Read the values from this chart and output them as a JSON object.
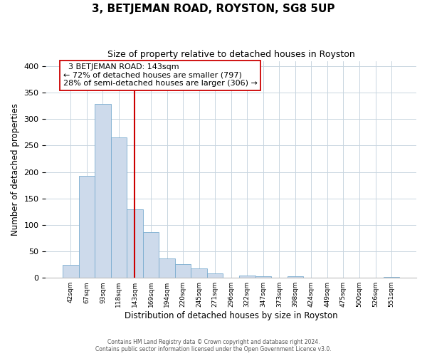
{
  "title": "3, BETJEMAN ROAD, ROYSTON, SG8 5UP",
  "subtitle": "Size of property relative to detached houses in Royston",
  "xlabel": "Distribution of detached houses by size in Royston",
  "ylabel": "Number of detached properties",
  "bin_labels": [
    "42sqm",
    "67sqm",
    "93sqm",
    "118sqm",
    "143sqm",
    "169sqm",
    "194sqm",
    "220sqm",
    "245sqm",
    "271sqm",
    "296sqm",
    "322sqm",
    "347sqm",
    "373sqm",
    "398sqm",
    "424sqm",
    "449sqm",
    "475sqm",
    "500sqm",
    "526sqm",
    "551sqm"
  ],
  "bar_heights": [
    25,
    193,
    328,
    265,
    130,
    87,
    37,
    26,
    18,
    8,
    0,
    4,
    3,
    0,
    3,
    0,
    0,
    0,
    0,
    0,
    2
  ],
  "bar_color": "#cddaeb",
  "bar_edge_color": "#7aaccf",
  "vline_x_index": 4,
  "vline_color": "#cc0000",
  "annotation_title": "3 BETJEMAN ROAD: 143sqm",
  "annotation_line1": "← 72% of detached houses are smaller (797)",
  "annotation_line2": "28% of semi-detached houses are larger (306) →",
  "annotation_box_color": "#ffffff",
  "annotation_box_edge": "#cc0000",
  "ylim": [
    0,
    410
  ],
  "yticks": [
    0,
    50,
    100,
    150,
    200,
    250,
    300,
    350,
    400
  ],
  "footnote1": "Contains HM Land Registry data © Crown copyright and database right 2024.",
  "footnote2": "Contains public sector information licensed under the Open Government Licence v3.0.",
  "background_color": "#ffffff",
  "grid_color": "#c8d5e0"
}
